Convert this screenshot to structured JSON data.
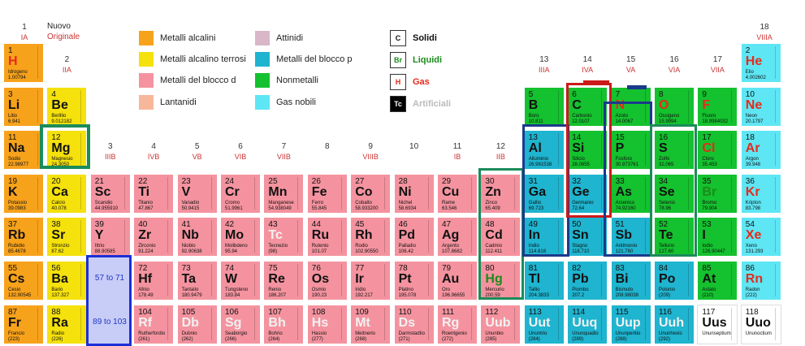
{
  "top": {
    "group1_number": "1",
    "group1_label": "IA",
    "new_label": "Nuovo",
    "orig_label": "Originale",
    "group18_number": "18",
    "group18_label": "VIIIA"
  },
  "groups": [
    {
      "n": "2",
      "r": "IIA"
    },
    {
      "n": "3",
      "r": "IIIB"
    },
    {
      "n": "4",
      "r": "IVB"
    },
    {
      "n": "5",
      "r": "VB"
    },
    {
      "n": "6",
      "r": "VIB"
    },
    {
      "n": "7",
      "r": "VIIB"
    },
    {
      "n": "8",
      "r": ""
    },
    {
      "n": "9",
      "r": "VIIIB"
    },
    {
      "n": "10",
      "r": ""
    },
    {
      "n": "11",
      "r": "IB"
    },
    {
      "n": "12",
      "r": "IIB"
    },
    {
      "n": "13",
      "r": "IIIA"
    },
    {
      "n": "14",
      "r": "IVA"
    },
    {
      "n": "15",
      "r": "VA"
    },
    {
      "n": "16",
      "r": "VIA"
    },
    {
      "n": "17",
      "r": "VIIA"
    }
  ],
  "legend": [
    {
      "label": "Metalli alcalini",
      "color": "#f7a21b"
    },
    {
      "label": "Metalli alcalino terrosi",
      "color": "#f5e10c"
    },
    {
      "label": "Metalli del blocco d",
      "color": "#f4939f"
    },
    {
      "label": "Lantanidi",
      "color": "#f7b79a"
    },
    {
      "label": "Attinidi",
      "color": "#d9b6c8"
    },
    {
      "label": "Metalli del blocco p",
      "color": "#1fb4cf"
    },
    {
      "label": "Nonmetalli",
      "color": "#14c12e"
    },
    {
      "label": "Gas nobili",
      "color": "#5ee6f4"
    }
  ],
  "states": [
    {
      "box": "C",
      "label": "Solidi",
      "color": "#111111",
      "bg": "#ffffff",
      "tcolor": "#111111"
    },
    {
      "box": "Br",
      "label": "Liquidi",
      "color": "#1a8c1a",
      "bg": "#ffffff",
      "tcolor": "#1a8c1a"
    },
    {
      "box": "H",
      "label": "Gas",
      "color": "#e62a1a",
      "bg": "#ffffff",
      "tcolor": "#e62a1a"
    },
    {
      "box": "Tc",
      "label": "Artificiali",
      "color": "#bbbbbb",
      "bg": "#000000",
      "tcolor": "#ffffff"
    }
  ],
  "ranges": {
    "lan": "57 to 71",
    "act": "89 to 103"
  },
  "elements": [
    {
      "n": "1",
      "s": "H",
      "nm": "Idrogeno",
      "m": "1.00794",
      "c": "alk",
      "r": 0,
      "g": 0,
      "t": "gas"
    },
    {
      "n": "2",
      "s": "He",
      "nm": "Elio",
      "m": "4.002602",
      "c": "nob",
      "r": 0,
      "g": 17,
      "t": "gas"
    },
    {
      "n": "3",
      "s": "Li",
      "nm": "Litio",
      "m": "6.941",
      "c": "alk",
      "r": 1,
      "g": 0
    },
    {
      "n": "4",
      "s": "Be",
      "nm": "Berillio",
      "m": "9.012182",
      "c": "aet",
      "r": 1,
      "g": 1
    },
    {
      "n": "5",
      "s": "B",
      "nm": "Boro",
      "m": "10.811",
      "c": "non",
      "r": 1,
      "g": 12
    },
    {
      "n": "6",
      "s": "C",
      "nm": "Carbonio",
      "m": "12.0107",
      "c": "non",
      "r": 1,
      "g": 13
    },
    {
      "n": "7",
      "s": "N",
      "nm": "Azoto",
      "m": "14.0067",
      "c": "non",
      "r": 1,
      "g": 14,
      "t": "gas"
    },
    {
      "n": "8",
      "s": "O",
      "nm": "Ossigeno",
      "m": "15.9994",
      "c": "non",
      "r": 1,
      "g": 15,
      "t": "gas"
    },
    {
      "n": "9",
      "s": "F",
      "nm": "Fluoro",
      "m": "18.9984032",
      "c": "non",
      "r": 1,
      "g": 16,
      "t": "gas"
    },
    {
      "n": "10",
      "s": "Ne",
      "nm": "Neon",
      "m": "20.1797",
      "c": "nob",
      "r": 1,
      "g": 17,
      "t": "gas"
    },
    {
      "n": "11",
      "s": "Na",
      "nm": "Sodio",
      "m": "22.98977",
      "c": "alk",
      "r": 2,
      "g": 0
    },
    {
      "n": "12",
      "s": "Mg",
      "nm": "Magnesio",
      "m": "24.3050",
      "c": "aet",
      "r": 2,
      "g": 1
    },
    {
      "n": "13",
      "s": "Al",
      "nm": "Alluminio",
      "m": "26.981538",
      "c": "pbl",
      "r": 2,
      "g": 12
    },
    {
      "n": "14",
      "s": "Si",
      "nm": "Silicio",
      "m": "28.0855",
      "c": "non",
      "r": 2,
      "g": 13
    },
    {
      "n": "15",
      "s": "P",
      "nm": "Fosforo",
      "m": "30.973761",
      "c": "non",
      "r": 2,
      "g": 14
    },
    {
      "n": "16",
      "s": "S",
      "nm": "Zolfo",
      "m": "32.065",
      "c": "non",
      "r": 2,
      "g": 15
    },
    {
      "n": "17",
      "s": "Cl",
      "nm": "Cloro",
      "m": "35.453",
      "c": "non",
      "r": 2,
      "g": 16,
      "t": "gas"
    },
    {
      "n": "18",
      "s": "Ar",
      "nm": "Argon",
      "m": "39.948",
      "c": "nob",
      "r": 2,
      "g": 17,
      "t": "gas"
    },
    {
      "n": "19",
      "s": "K",
      "nm": "Potassio",
      "m": "39.0983",
      "c": "alk",
      "r": 3,
      "g": 0
    },
    {
      "n": "20",
      "s": "Ca",
      "nm": "Calcio",
      "m": "40.078",
      "c": "aet",
      "r": 3,
      "g": 1
    },
    {
      "n": "21",
      "s": "Sc",
      "nm": "Scandio",
      "m": "44.955910",
      "c": "tra",
      "r": 3,
      "g": 2
    },
    {
      "n": "22",
      "s": "Ti",
      "nm": "Titanio",
      "m": "47.867",
      "c": "tra",
      "r": 3,
      "g": 3
    },
    {
      "n": "23",
      "s": "V",
      "nm": "Vanadio",
      "m": "50.9415",
      "c": "tra",
      "r": 3,
      "g": 4
    },
    {
      "n": "24",
      "s": "Cr",
      "nm": "Cromo",
      "m": "51.9961",
      "c": "tra",
      "r": 3,
      "g": 5
    },
    {
      "n": "25",
      "s": "Mn",
      "nm": "Manganese",
      "m": "54.938049",
      "c": "tra",
      "r": 3,
      "g": 6
    },
    {
      "n": "26",
      "s": "Fe",
      "nm": "Ferro",
      "m": "55.845",
      "c": "tra",
      "r": 3,
      "g": 7
    },
    {
      "n": "27",
      "s": "Co",
      "nm": "Cobalto",
      "m": "58.933200",
      "c": "tra",
      "r": 3,
      "g": 8
    },
    {
      "n": "28",
      "s": "Ni",
      "nm": "Nichel",
      "m": "58.6934",
      "c": "tra",
      "r": 3,
      "g": 9
    },
    {
      "n": "29",
      "s": "Cu",
      "nm": "Rame",
      "m": "63.546",
      "c": "tra",
      "r": 3,
      "g": 10
    },
    {
      "n": "30",
      "s": "Zn",
      "nm": "Zinco",
      "m": "65.409",
      "c": "tra",
      "r": 3,
      "g": 11
    },
    {
      "n": "31",
      "s": "Ga",
      "nm": "Gallio",
      "m": "69.723",
      "c": "pbl",
      "r": 3,
      "g": 12
    },
    {
      "n": "32",
      "s": "Ge",
      "nm": "Germanio",
      "m": "72.64",
      "c": "pbl",
      "r": 3,
      "g": 13
    },
    {
      "n": "33",
      "s": "As",
      "nm": "Arsenico",
      "m": "74.92160",
      "c": "non",
      "r": 3,
      "g": 14
    },
    {
      "n": "34",
      "s": "Se",
      "nm": "Selenio",
      "m": "78.96",
      "c": "non",
      "r": 3,
      "g": 15
    },
    {
      "n": "35",
      "s": "Br",
      "nm": "Bromo",
      "m": "79.904",
      "c": "non",
      "r": 3,
      "g": 16,
      "t": "liq"
    },
    {
      "n": "36",
      "s": "Kr",
      "nm": "Kripton",
      "m": "83.798",
      "c": "nob",
      "r": 3,
      "g": 17,
      "t": "gas"
    },
    {
      "n": "37",
      "s": "Rb",
      "nm": "Rubidio",
      "m": "85.4678",
      "c": "alk",
      "r": 4,
      "g": 0
    },
    {
      "n": "38",
      "s": "Sr",
      "nm": "Stronzio",
      "m": "87.62",
      "c": "aet",
      "r": 4,
      "g": 1
    },
    {
      "n": "39",
      "s": "Y",
      "nm": "Ittrio",
      "m": "88.90585",
      "c": "tra",
      "r": 4,
      "g": 2
    },
    {
      "n": "40",
      "s": "Zr",
      "nm": "Zirconio",
      "m": "91.224",
      "c": "tra",
      "r": 4,
      "g": 3
    },
    {
      "n": "41",
      "s": "Nb",
      "nm": "Niobio",
      "m": "92.90638",
      "c": "tra",
      "r": 4,
      "g": 4
    },
    {
      "n": "42",
      "s": "Mo",
      "nm": "Molibdeno",
      "m": "95.94",
      "c": "tra",
      "r": 4,
      "g": 5
    },
    {
      "n": "43",
      "s": "Tc",
      "nm": "Tecnezio",
      "m": "(98)",
      "c": "tra",
      "r": 4,
      "g": 6,
      "t": "art"
    },
    {
      "n": "44",
      "s": "Ru",
      "nm": "Rutenio",
      "m": "101.07",
      "c": "tra",
      "r": 4,
      "g": 7
    },
    {
      "n": "45",
      "s": "Rh",
      "nm": "Rodio",
      "m": "102.90550",
      "c": "tra",
      "r": 4,
      "g": 8
    },
    {
      "n": "46",
      "s": "Pd",
      "nm": "Palladio",
      "m": "106.42",
      "c": "tra",
      "r": 4,
      "g": 9
    },
    {
      "n": "47",
      "s": "Ag",
      "nm": "Argento",
      "m": "107.8682",
      "c": "tra",
      "r": 4,
      "g": 10
    },
    {
      "n": "48",
      "s": "Cd",
      "nm": "Cadmio",
      "m": "112.411",
      "c": "tra",
      "r": 4,
      "g": 11
    },
    {
      "n": "49",
      "s": "In",
      "nm": "Indio",
      "m": "114.818",
      "c": "pbl",
      "r": 4,
      "g": 12
    },
    {
      "n": "50",
      "s": "Sn",
      "nm": "Stagno",
      "m": "118.710",
      "c": "pbl",
      "r": 4,
      "g": 13
    },
    {
      "n": "51",
      "s": "Sb",
      "nm": "Antimonio",
      "m": "121.760",
      "c": "pbl",
      "r": 4,
      "g": 14
    },
    {
      "n": "52",
      "s": "Te",
      "nm": "Tellurio",
      "m": "127.60",
      "c": "non",
      "r": 4,
      "g": 15
    },
    {
      "n": "53",
      "s": "I",
      "nm": "Iodio",
      "m": "126.90447",
      "c": "non",
      "r": 4,
      "g": 16
    },
    {
      "n": "54",
      "s": "Xe",
      "nm": "Xeno",
      "m": "131.293",
      "c": "nob",
      "r": 4,
      "g": 17,
      "t": "gas"
    },
    {
      "n": "55",
      "s": "Cs",
      "nm": "Cesio",
      "m": "132.90545",
      "c": "alk",
      "r": 5,
      "g": 0
    },
    {
      "n": "56",
      "s": "Ba",
      "nm": "Bario",
      "m": "137.327",
      "c": "aet",
      "r": 5,
      "g": 1
    },
    {
      "n": "72",
      "s": "Hf",
      "nm": "Afnio",
      "m": "178.49",
      "c": "tra",
      "r": 5,
      "g": 3
    },
    {
      "n": "73",
      "s": "Ta",
      "nm": "Tantalio",
      "m": "180.9479",
      "c": "tra",
      "r": 5,
      "g": 4
    },
    {
      "n": "74",
      "s": "W",
      "nm": "Tungsteno",
      "m": "183.84",
      "c": "tra",
      "r": 5,
      "g": 5
    },
    {
      "n": "75",
      "s": "Re",
      "nm": "Renio",
      "m": "186.207",
      "c": "tra",
      "r": 5,
      "g": 6
    },
    {
      "n": "76",
      "s": "Os",
      "nm": "Osmio",
      "m": "190.23",
      "c": "tra",
      "r": 5,
      "g": 7
    },
    {
      "n": "77",
      "s": "Ir",
      "nm": "Iridio",
      "m": "192.217",
      "c": "tra",
      "r": 5,
      "g": 8
    },
    {
      "n": "78",
      "s": "Pt",
      "nm": "Platino",
      "m": "195.078",
      "c": "tra",
      "r": 5,
      "g": 9
    },
    {
      "n": "79",
      "s": "Au",
      "nm": "Oro",
      "m": "196.96655",
      "c": "tra",
      "r": 5,
      "g": 10
    },
    {
      "n": "80",
      "s": "Hg",
      "nm": "Mercurio",
      "m": "200.59",
      "c": "tra",
      "r": 5,
      "g": 11,
      "t": "liq"
    },
    {
      "n": "81",
      "s": "Tl",
      "nm": "Tallio",
      "m": "204.3833",
      "c": "pbl",
      "r": 5,
      "g": 12
    },
    {
      "n": "82",
      "s": "Pb",
      "nm": "Piombo",
      "m": "207.2",
      "c": "pbl",
      "r": 5,
      "g": 13
    },
    {
      "n": "83",
      "s": "Bi",
      "nm": "Bismuto",
      "m": "208.98038",
      "c": "pbl",
      "r": 5,
      "g": 14
    },
    {
      "n": "84",
      "s": "Po",
      "nm": "Polonio",
      "m": "(209)",
      "c": "pbl",
      "r": 5,
      "g": 15
    },
    {
      "n": "85",
      "s": "At",
      "nm": "Astato",
      "m": "(210)",
      "c": "non",
      "r": 5,
      "g": 16
    },
    {
      "n": "86",
      "s": "Rn",
      "nm": "Radon",
      "m": "(222)",
      "c": "nob",
      "r": 5,
      "g": 17,
      "t": "gas"
    },
    {
      "n": "87",
      "s": "Fr",
      "nm": "Francio",
      "m": "(223)",
      "c": "alk",
      "r": 6,
      "g": 0
    },
    {
      "n": "88",
      "s": "Ra",
      "nm": "Radio",
      "m": "(226)",
      "c": "aet",
      "r": 6,
      "g": 1
    },
    {
      "n": "104",
      "s": "Rf",
      "nm": "Rutherfordio",
      "m": "(261)",
      "c": "tra",
      "r": 6,
      "g": 3,
      "t": "art"
    },
    {
      "n": "105",
      "s": "Db",
      "nm": "Dubnio",
      "m": "(262)",
      "c": "tra",
      "r": 6,
      "g": 4,
      "t": "art"
    },
    {
      "n": "106",
      "s": "Sg",
      "nm": "Seaborgio",
      "m": "(266)",
      "c": "tra",
      "r": 6,
      "g": 5,
      "t": "art"
    },
    {
      "n": "107",
      "s": "Bh",
      "nm": "Bohrio",
      "m": "(264)",
      "c": "tra",
      "r": 6,
      "g": 6,
      "t": "art"
    },
    {
      "n": "108",
      "s": "Hs",
      "nm": "Hassio",
      "m": "(277)",
      "c": "tra",
      "r": 6,
      "g": 7,
      "t": "art"
    },
    {
      "n": "109",
      "s": "Mt",
      "nm": "Meitnerio",
      "m": "(268)",
      "c": "tra",
      "r": 6,
      "g": 8,
      "t": "art"
    },
    {
      "n": "110",
      "s": "Ds",
      "nm": "Darmstadtio",
      "m": "(271)",
      "c": "tra",
      "r": 6,
      "g": 9,
      "t": "art"
    },
    {
      "n": "111",
      "s": "Rg",
      "nm": "Roentgenio",
      "m": "(272)",
      "c": "tra",
      "r": 6,
      "g": 10,
      "t": "art"
    },
    {
      "n": "112",
      "s": "Uub",
      "nm": "Ununbio",
      "m": "(285)",
      "c": "tra",
      "r": 6,
      "g": 11,
      "t": "art"
    },
    {
      "n": "113",
      "s": "Uut",
      "nm": "Ununtrio",
      "m": "(284)",
      "c": "pbl",
      "r": 6,
      "g": 12,
      "t": "art"
    },
    {
      "n": "114",
      "s": "Uuq",
      "nm": "Ununquadio",
      "m": "(289)",
      "c": "pbl",
      "r": 6,
      "g": 13,
      "t": "art"
    },
    {
      "n": "115",
      "s": "Uup",
      "nm": "Ununpentio",
      "m": "(288)",
      "c": "pbl",
      "r": 6,
      "g": 14,
      "t": "art"
    },
    {
      "n": "116",
      "s": "Uuh",
      "nm": "Ununhexio",
      "m": "(292)",
      "c": "pbl",
      "r": 6,
      "g": 15,
      "t": "art"
    },
    {
      "n": "117",
      "s": "Uus",
      "nm": "Ununseptium",
      "m": "",
      "c": "unk",
      "r": 6,
      "g": 16,
      "t": "blk"
    },
    {
      "n": "118",
      "s": "Uuo",
      "nm": "Ununoctium",
      "m": "",
      "c": "unk",
      "r": 6,
      "g": 17,
      "t": "blk"
    }
  ]
}
